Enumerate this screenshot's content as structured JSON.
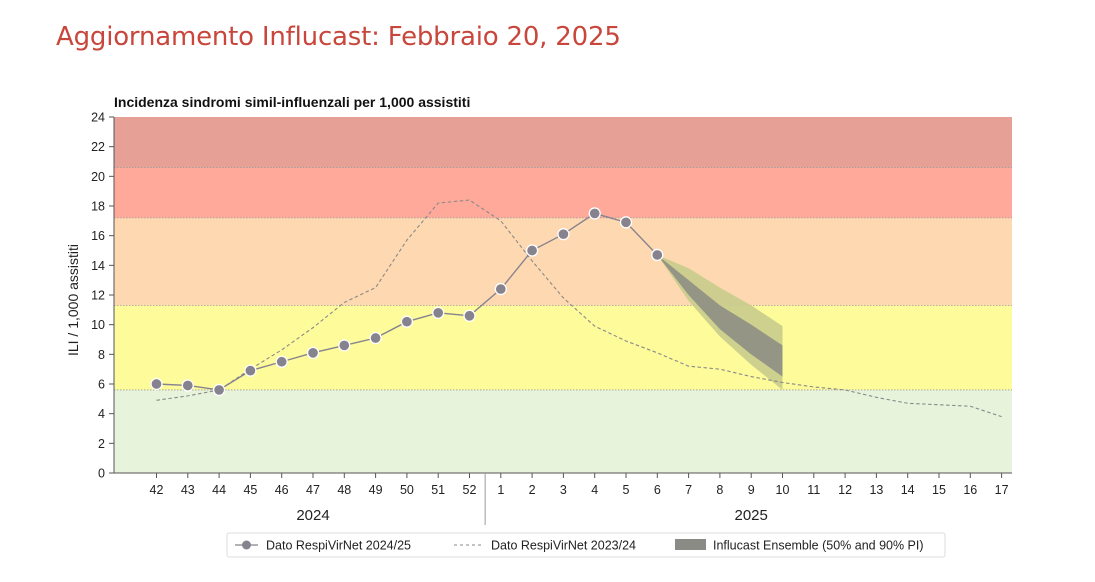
{
  "page": {
    "title": "Aggiornamento Influcast: Febbraio 20, 2025"
  },
  "chart_data": {
    "type": "line",
    "title": "Incidenza sindromi simil-influenzali per 1,000 assistiti",
    "ylabel": "ILI / 1,000 assistiti",
    "xlabel": "",
    "ylim": [
      0,
      24
    ],
    "yticks": [
      0,
      2,
      4,
      6,
      8,
      10,
      12,
      14,
      16,
      18,
      20,
      22,
      24
    ],
    "categories": [
      "42",
      "43",
      "44",
      "45",
      "46",
      "47",
      "48",
      "49",
      "50",
      "51",
      "52",
      "1",
      "2",
      "3",
      "4",
      "5",
      "6",
      "7",
      "8",
      "9",
      "10",
      "11",
      "12",
      "13",
      "14",
      "15",
      "16",
      "17"
    ],
    "year_labels": [
      {
        "label": "2024",
        "from": "42",
        "to": "52"
      },
      {
        "label": "2025",
        "from": "1",
        "to": "17"
      }
    ],
    "bands": [
      {
        "from": 0,
        "to": 5.6,
        "color": "#e8f3dc"
      },
      {
        "from": 5.6,
        "to": 11.3,
        "color": "#fdfb9a"
      },
      {
        "from": 11.3,
        "to": 17.2,
        "color": "#fed8b0"
      },
      {
        "from": 17.2,
        "to": 20.6,
        "color": "#fea99a"
      },
      {
        "from": 20.6,
        "to": 24,
        "color": "#e6a096"
      }
    ],
    "series": [
      {
        "name": "Dato RespiVirNet 2024/25",
        "style": "line-markers",
        "color": "#86838f",
        "x": [
          "42",
          "43",
          "44",
          "45",
          "46",
          "47",
          "48",
          "49",
          "50",
          "51",
          "52",
          "1",
          "2",
          "3",
          "4",
          "5",
          "6"
        ],
        "values": [
          6.0,
          5.9,
          5.6,
          6.9,
          7.5,
          8.1,
          8.6,
          9.1,
          10.2,
          10.8,
          10.6,
          12.4,
          15.0,
          16.1,
          17.5,
          16.9,
          14.7
        ]
      },
      {
        "name": "Dato RespiVirNet 2023/24",
        "style": "dashed",
        "color": "#8a8a8a",
        "x": [
          "42",
          "43",
          "44",
          "45",
          "46",
          "47",
          "48",
          "49",
          "50",
          "51",
          "52",
          "1",
          "2",
          "3",
          "4",
          "5",
          "6",
          "7",
          "8",
          "9",
          "10",
          "11",
          "12",
          "13",
          "14",
          "15",
          "16",
          "17"
        ],
        "values": [
          4.9,
          5.2,
          5.6,
          7.0,
          8.3,
          9.8,
          11.5,
          12.5,
          15.7,
          18.2,
          18.4,
          17.0,
          14.3,
          11.8,
          9.9,
          8.9,
          8.1,
          7.2,
          7.0,
          6.5,
          6.1,
          5.8,
          5.6,
          5.1,
          4.7,
          4.6,
          4.5,
          3.8
        ]
      },
      {
        "name": "Influcast Ensemble (50% and 90% PI)",
        "style": "band",
        "color_inner": "#8b8b85",
        "color_outer": "#c8cc8c",
        "x": [
          "6",
          "7",
          "8",
          "9",
          "10"
        ],
        "median": [
          14.7,
          12.4,
          10.4,
          8.9,
          7.6
        ],
        "pi50_low": [
          14.7,
          12.0,
          9.7,
          8.0,
          6.5
        ],
        "pi50_high": [
          14.7,
          13.0,
          11.3,
          10.0,
          8.6
        ],
        "pi90_low": [
          14.7,
          11.6,
          9.2,
          7.3,
          5.6
        ],
        "pi90_high": [
          14.7,
          13.8,
          12.5,
          11.3,
          9.9
        ]
      }
    ],
    "legend": [
      {
        "label": "Dato RespiVirNet 2024/25",
        "marker": "line-dot"
      },
      {
        "label": "Dato RespiVirNet 2023/24",
        "marker": "dashed"
      },
      {
        "label": "Influcast Ensemble (50% and 90% PI)",
        "marker": "box"
      }
    ],
    "legend_position": "bottom",
    "grid": false
  }
}
